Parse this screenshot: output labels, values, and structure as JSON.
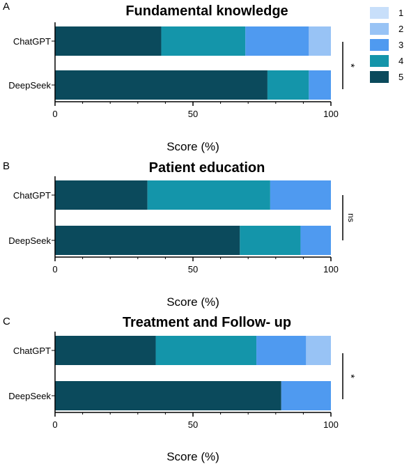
{
  "legend": {
    "entries": [
      "1",
      "2",
      "3",
      "4",
      "5"
    ]
  },
  "colors": {
    "1": "#c8dffa",
    "2": "#98c3f5",
    "3": "#4f9af0",
    "4": "#1495aa",
    "5": "#0b4a5c",
    "text": "#000000",
    "axis": "#000000"
  },
  "chart_data": [
    {
      "panel": "A",
      "type": "bar",
      "orientation": "horizontal",
      "stacked": true,
      "title": "Fundamental knowledge",
      "categories": [
        "ChatGPT",
        "DeepSeek"
      ],
      "series": [
        {
          "name": "5",
          "values": [
            38.5,
            77
          ]
        },
        {
          "name": "4",
          "values": [
            30.5,
            15
          ]
        },
        {
          "name": "3",
          "values": [
            23,
            8
          ]
        },
        {
          "name": "2",
          "values": [
            8,
            0
          ]
        },
        {
          "name": "1",
          "values": [
            0,
            0
          ]
        }
      ],
      "xlabel": "Score (%)",
      "xlim": [
        0,
        100
      ],
      "xticks": [
        "0",
        "50",
        "100"
      ],
      "significance": "*"
    },
    {
      "panel": "B",
      "type": "bar",
      "orientation": "horizontal",
      "stacked": true,
      "title": "Patient education",
      "categories": [
        "ChatGPT",
        "DeepSeek"
      ],
      "series": [
        {
          "name": "5",
          "values": [
            33.5,
            67
          ]
        },
        {
          "name": "4",
          "values": [
            44.5,
            22
          ]
        },
        {
          "name": "3",
          "values": [
            22,
            11
          ]
        },
        {
          "name": "2",
          "values": [
            0,
            0
          ]
        },
        {
          "name": "1",
          "values": [
            0,
            0
          ]
        }
      ],
      "xlabel": "Score (%)",
      "xlim": [
        0,
        100
      ],
      "xticks": [
        "0",
        "50",
        "100"
      ],
      "significance": "ns"
    },
    {
      "panel": "C",
      "type": "bar",
      "orientation": "horizontal",
      "stacked": true,
      "title": "Treatment and Follow- up",
      "categories": [
        "ChatGPT",
        "DeepSeek"
      ],
      "series": [
        {
          "name": "5",
          "values": [
            36.5,
            82
          ]
        },
        {
          "name": "4",
          "values": [
            36.5,
            0
          ]
        },
        {
          "name": "3",
          "values": [
            18,
            18
          ]
        },
        {
          "name": "2",
          "values": [
            9,
            0
          ]
        },
        {
          "name": "1",
          "values": [
            0,
            0
          ]
        }
      ],
      "xlabel": "Score (%)",
      "xlim": [
        0,
        100
      ],
      "xticks": [
        "0",
        "50",
        "100"
      ],
      "significance": "*"
    }
  ]
}
